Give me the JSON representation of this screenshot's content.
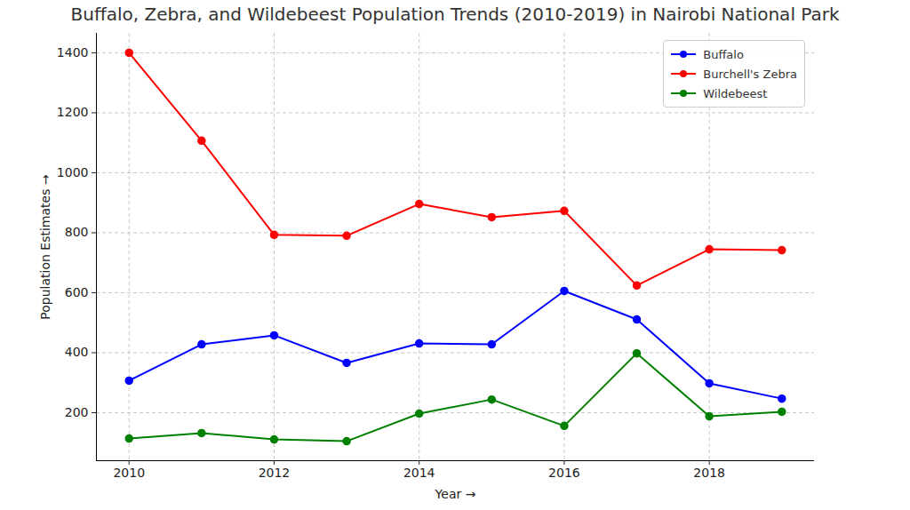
{
  "chart_data": {
    "type": "line",
    "title": "Buffalo, Zebra, and Wildebeest Population Trends (2010-2019) in Nairobi National Park",
    "x_label": "Year",
    "y_label": "Population Estimates",
    "x": [
      2010,
      2011,
      2012,
      2013,
      2014,
      2015,
      2016,
      2017,
      2018,
      2019
    ],
    "series": [
      {
        "name": "Buffalo",
        "color": "#0000ff",
        "marker": "circle",
        "values": [
          307,
          428,
          458,
          366,
          431,
          428,
          606,
          511,
          298,
          247
        ]
      },
      {
        "name": "Burchell's Zebra",
        "color": "#ff0000",
        "marker": "circle",
        "values": [
          1400,
          1107,
          793,
          790,
          896,
          852,
          873,
          624,
          745,
          742
        ]
      },
      {
        "name": "Wildebeest",
        "color": "#008000",
        "marker": "circle",
        "values": [
          114,
          132,
          111,
          105,
          197,
          244,
          156,
          398,
          188,
          203
        ]
      }
    ],
    "xlim": [
      2009.55,
      2019.45
    ],
    "ylim": [
      40,
      1465
    ],
    "xticks": [
      2010,
      2012,
      2014,
      2016,
      2018
    ],
    "yticks": [
      200,
      400,
      600,
      800,
      1000,
      1200,
      1400
    ],
    "grid": true,
    "legend": "upper right"
  }
}
